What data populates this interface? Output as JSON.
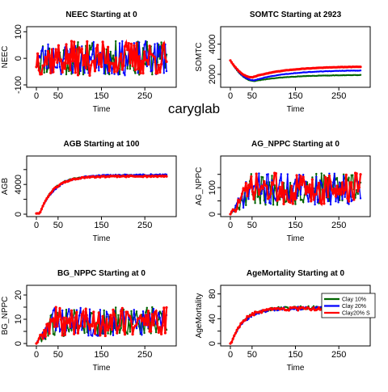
{
  "figure": {
    "label": "caryglab"
  },
  "legend": {
    "entries": [
      {
        "label": "Clay 10% ",
        "color": "#006400"
      },
      {
        "label": "Clay 20% ",
        "color": "#0000ff"
      },
      {
        "label": "Clay20% S",
        "color": "#ff0000"
      }
    ]
  },
  "colors": {
    "clay10": "#006400",
    "clay20": "#0000ff",
    "clay20s": "#ff0000"
  },
  "chart_data": [
    {
      "type": "line",
      "title": "NEEC Starting at  0",
      "xlabel": "Time",
      "ylabel": "NEEC",
      "xlim": [
        0,
        300
      ],
      "ylim": [
        -100,
        110
      ],
      "xticks": [
        0,
        50,
        150,
        250
      ],
      "yticks": [
        -100,
        0,
        100
      ],
      "ytick_labels": [
        "-100",
        "0",
        "100"
      ],
      "series": [
        {
          "name": "Clay 10% ",
          "color": "#006400",
          "pattern": {
            "kind": "noise",
            "mean": 0,
            "amp": 65,
            "seed": 11
          }
        },
        {
          "name": "Clay 20% ",
          "color": "#0000ff",
          "pattern": {
            "kind": "noise",
            "mean": 0,
            "amp": 65,
            "seed": 23
          }
        },
        {
          "name": "Clay20% S",
          "color": "#ff0000",
          "pattern": {
            "kind": "noise",
            "mean": 0,
            "amp": 65,
            "seed": 37
          }
        }
      ]
    },
    {
      "type": "line",
      "title": "SOMTC Starting at  2923",
      "xlabel": "Time",
      "ylabel": "SOMTC",
      "xlim": [
        0,
        300
      ],
      "ylim": [
        1300,
        5000
      ],
      "xticks": [
        0,
        50,
        150,
        250
      ],
      "yticks": [
        2000,
        3000,
        4000
      ],
      "ytick_labels": [
        "2000",
        "",
        "4000"
      ],
      "series": [
        {
          "name": "Clay 10% ",
          "color": "#006400",
          "pattern": {
            "kind": "dip",
            "start": 2923,
            "min": 1550,
            "tmin": 55,
            "end": 1950,
            "noise": 10,
            "seed": 41
          }
        },
        {
          "name": "Clay 20% ",
          "color": "#0000ff",
          "pattern": {
            "kind": "dip",
            "start": 2923,
            "min": 1600,
            "tmin": 55,
            "end": 2250,
            "noise": 10,
            "seed": 43
          }
        },
        {
          "name": "Clay20% S",
          "color": "#ff0000",
          "pattern": {
            "kind": "dip",
            "start": 2923,
            "min": 1800,
            "tmin": 50,
            "end": 2500,
            "noise": 10,
            "seed": 47
          }
        }
      ]
    },
    {
      "type": "line",
      "title": "AGB Starting at  100",
      "xlabel": "Time",
      "ylabel": "AGB",
      "xlim": [
        0,
        300
      ],
      "ylim": [
        0,
        7500
      ],
      "xticks": [
        0,
        50,
        150,
        250
      ],
      "yticks": [
        0,
        2000,
        4000,
        6000
      ],
      "ytick_labels": [
        "0",
        "",
        "4000",
        ""
      ],
      "series": [
        {
          "name": "Clay 10% ",
          "color": "#006400",
          "pattern": {
            "kind": "grow",
            "start": 100,
            "end": 5200,
            "rate": 0.032,
            "lag": 8,
            "noise": 90,
            "seed": 53
          }
        },
        {
          "name": "Clay 20% ",
          "color": "#0000ff",
          "pattern": {
            "kind": "grow",
            "start": 100,
            "end": 5300,
            "rate": 0.028,
            "lag": 8,
            "noise": 90,
            "seed": 59
          }
        },
        {
          "name": "Clay20% S",
          "color": "#ff0000",
          "pattern": {
            "kind": "grow",
            "start": 100,
            "end": 5100,
            "rate": 0.032,
            "lag": 8,
            "noise": 90,
            "seed": 61
          }
        }
      ]
    },
    {
      "type": "line",
      "title": "AG_NPPC Starting at  0",
      "xlabel": "Time",
      "ylabel": "AG_NPPC",
      "xlim": [
        0,
        300
      ],
      "ylim": [
        0,
        210
      ],
      "xticks": [
        0,
        50,
        150,
        250
      ],
      "yticks": [
        0,
        50,
        100,
        150
      ],
      "ytick_labels": [
        "0",
        "",
        "100",
        ""
      ],
      "series": [
        {
          "name": "Clay 10% ",
          "color": "#006400",
          "pattern": {
            "kind": "risenoise",
            "start": 0,
            "mean": 95,
            "amp": 60,
            "rise": 18,
            "seed": 67
          }
        },
        {
          "name": "Clay 20% ",
          "color": "#0000ff",
          "pattern": {
            "kind": "risenoise",
            "start": 0,
            "mean": 95,
            "amp": 60,
            "rise": 18,
            "seed": 71
          }
        },
        {
          "name": "Clay20% S",
          "color": "#ff0000",
          "pattern": {
            "kind": "risenoise",
            "start": 0,
            "mean": 95,
            "amp": 60,
            "rise": 18,
            "seed": 73
          }
        }
      ]
    },
    {
      "type": "line",
      "title": "BG_NPPC Starting at  0",
      "xlabel": "Time",
      "ylabel": "BG_NPPC",
      "xlim": [
        0,
        300
      ],
      "ylim": [
        0,
        23
      ],
      "xticks": [
        0,
        50,
        150,
        250
      ],
      "yticks": [
        0,
        5,
        10,
        15,
        20
      ],
      "ytick_labels": [
        "0",
        "",
        "10",
        "",
        "20"
      ],
      "series": [
        {
          "name": "Clay 10% ",
          "color": "#006400",
          "pattern": {
            "kind": "risenoise",
            "start": 0,
            "mean": 9,
            "amp": 6,
            "rise": 15,
            "seed": 79
          }
        },
        {
          "name": "Clay 20% ",
          "color": "#0000ff",
          "pattern": {
            "kind": "risenoise",
            "start": 0,
            "mean": 9,
            "amp": 6,
            "rise": 15,
            "seed": 83
          }
        },
        {
          "name": "Clay20% S",
          "color": "#ff0000",
          "pattern": {
            "kind": "risenoise",
            "start": 0,
            "mean": 9,
            "amp": 6,
            "rise": 15,
            "seed": 89
          }
        }
      ]
    },
    {
      "type": "line",
      "title": "AgeMortality Starting at  0",
      "xlabel": "Time",
      "ylabel": "AgeMortality",
      "xlim": [
        0,
        300
      ],
      "ylim": [
        0,
        90
      ],
      "xticks": [
        0,
        50,
        150,
        250
      ],
      "yticks": [
        0,
        20,
        40,
        60,
        80
      ],
      "ytick_labels": [
        "0",
        "",
        "40",
        "",
        "80"
      ],
      "legend": "top-right",
      "series": [
        {
          "name": "Clay 10% ",
          "color": "#006400",
          "pattern": {
            "kind": "grow",
            "start": 0,
            "end": 58,
            "rate": 0.035,
            "lag": 2,
            "noise": 2.5,
            "seed": 97
          }
        },
        {
          "name": "Clay 20% ",
          "color": "#0000ff",
          "pattern": {
            "kind": "grow",
            "start": 0,
            "end": 57,
            "rate": 0.033,
            "lag": 2,
            "noise": 2.5,
            "seed": 101
          }
        },
        {
          "name": "Clay20% S",
          "color": "#ff0000",
          "pattern": {
            "kind": "grow",
            "start": 0,
            "end": 56,
            "rate": 0.037,
            "lag": 2,
            "noise": 2.5,
            "seed": 103
          }
        }
      ]
    }
  ]
}
